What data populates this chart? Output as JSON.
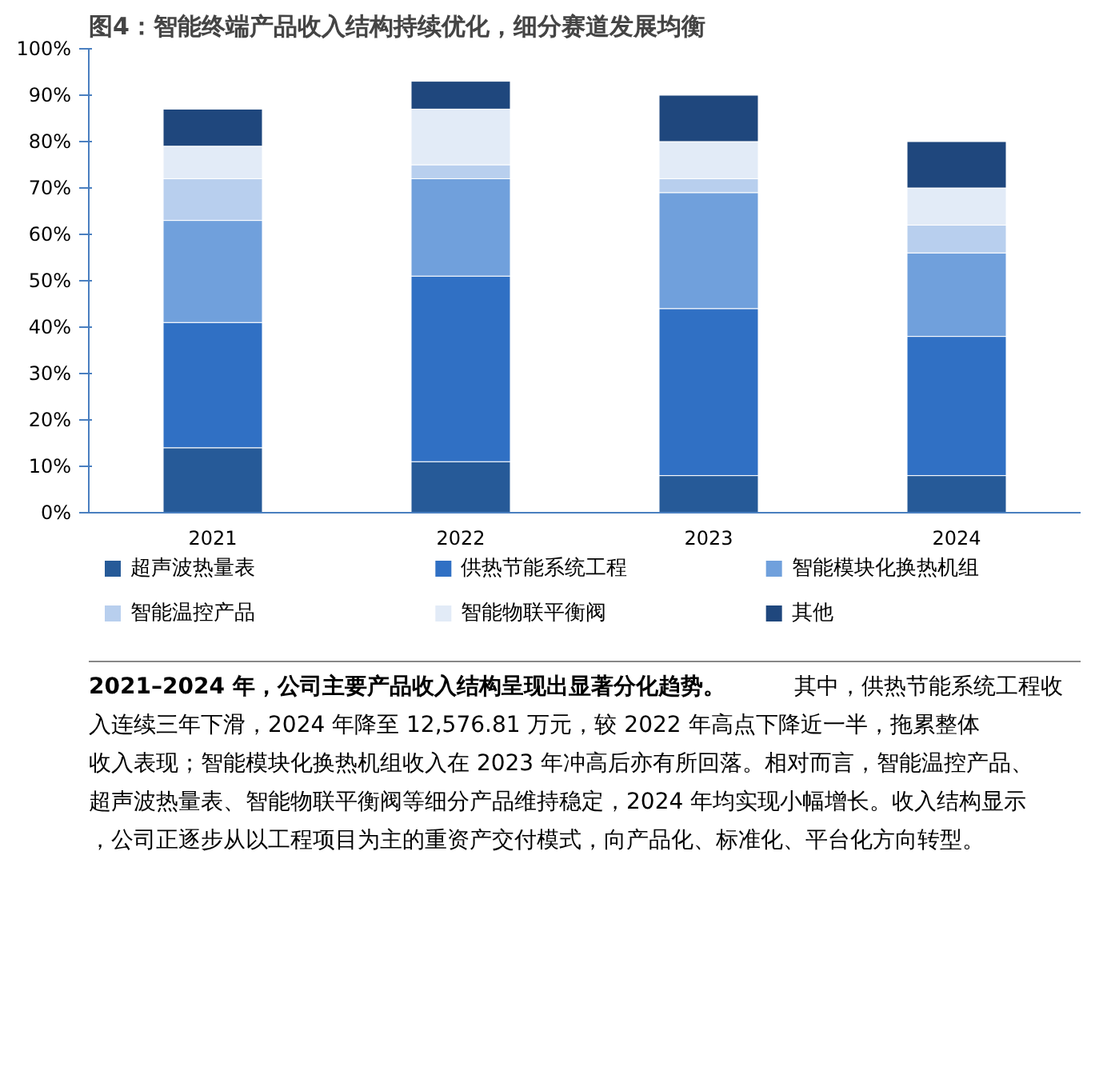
{
  "chart_data": {
    "type": "bar",
    "stacked": true,
    "title": "图4：智能终端产品收入结构持续优化，细分赛道发展均衡",
    "categories": [
      "2021",
      "2022",
      "2023",
      "2024"
    ],
    "series": [
      {
        "name": "超声波热量表",
        "color": "#265a98",
        "values": [
          14,
          11,
          8,
          8
        ]
      },
      {
        "name": "供热节能系统工程",
        "color": "#3070c4",
        "values": [
          27,
          40,
          36,
          30
        ]
      },
      {
        "name": "智能模块化换热机组",
        "color": "#70a0dc",
        "values": [
          22,
          21,
          25,
          18
        ]
      },
      {
        "name": "智能温控产品",
        "color": "#b8cfee",
        "values": [
          9,
          3,
          3,
          6
        ]
      },
      {
        "name": "智能物联平衡阀",
        "color": "#e2ebf7",
        "values": [
          7,
          12,
          8,
          8
        ]
      },
      {
        "name": "其他",
        "color": "#1f477d",
        "values": [
          8,
          6,
          10,
          10
        ]
      }
    ],
    "ylim": [
      0,
      100
    ],
    "yticks": [
      {
        "value": 0,
        "label": "0%"
      },
      {
        "value": 10,
        "label": "10%"
      },
      {
        "value": 20,
        "label": "20%"
      },
      {
        "value": 30,
        "label": "30%"
      },
      {
        "value": 40,
        "label": "40%"
      },
      {
        "value": 50,
        "label": "50%"
      },
      {
        "value": 60,
        "label": "60%"
      },
      {
        "value": 70,
        "label": "70%"
      },
      {
        "value": 80,
        "label": "80%"
      },
      {
        "value": 90,
        "label": "90%"
      },
      {
        "value": 100,
        "label": "100%"
      }
    ],
    "grid": false,
    "legend": "bottom",
    "annotations": [
      "2021–2024 年，公司主要产品收入结构呈现出显著分化趋势。",
      "其中，供热节能系统工程收入连续三年下滑，2024 年降至 12,576.81 万元，较 2022 年高点下降近一半，拖累整体收入表现；智能模块化换热机组收入在 2023 年冲高后亦有所回落。相对而言，智能温控产品、超声波热量表、智能物联平衡阀等细分产品维持稳定，2024 年均实现小幅增长。收入结构显示，公司正逐步从以工程项目为主的重资产交付模式，向产品化、标准化、平台化方向转型。"
    ]
  }
}
